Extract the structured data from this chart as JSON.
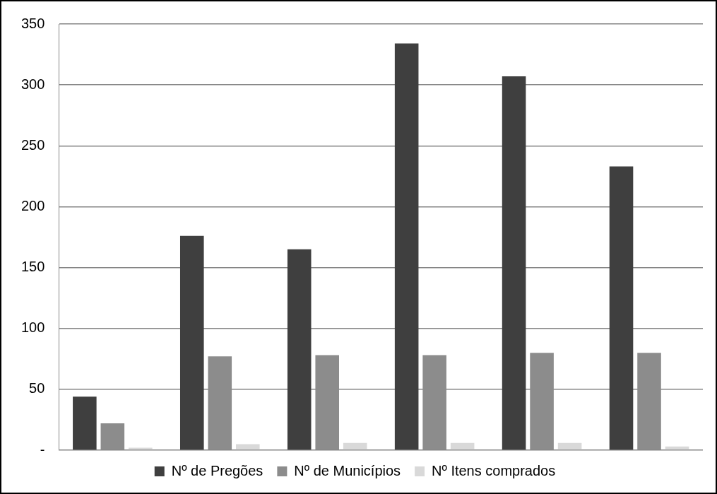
{
  "chart_data": {
    "type": "bar",
    "categories": [
      null,
      null,
      null,
      null,
      null,
      null
    ],
    "series": [
      {
        "name": "Nº de Pregões",
        "color": "#3f3f3f",
        "values": [
          44,
          176,
          165,
          334,
          307,
          233
        ]
      },
      {
        "name": "Nº de Municípios",
        "color": "#8c8c8c",
        "values": [
          22,
          77,
          78,
          78,
          80,
          80
        ]
      },
      {
        "name": "Nº Itens comprados",
        "color": "#d9d9d9",
        "values": [
          2,
          5,
          6,
          6,
          6,
          3
        ]
      }
    ],
    "ylim": [
      0,
      350
    ],
    "yticks": [
      {
        "value": 0,
        "label": "-"
      },
      50,
      100,
      150,
      200,
      250,
      300,
      350
    ],
    "grid": "y",
    "legend": "bottom"
  }
}
